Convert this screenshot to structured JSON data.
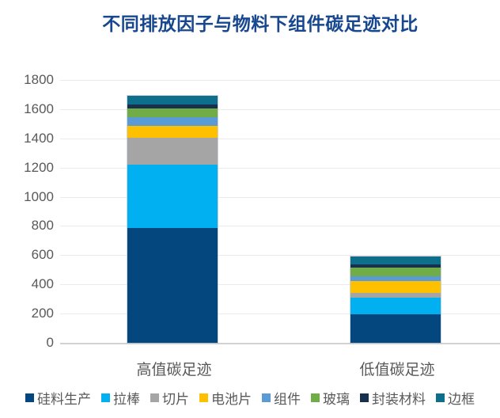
{
  "chart_data": {
    "type": "bar",
    "stacked": true,
    "title": "不同排放因子与物料下组件碳足迹对比",
    "categories": [
      "高值碳足迹",
      "低值碳足迹"
    ],
    "series": [
      {
        "name": "硅料生产",
        "color": "#04477E",
        "values": [
          785,
          195
        ]
      },
      {
        "name": "拉棒",
        "color": "#00B0F0",
        "values": [
          435,
          114
        ]
      },
      {
        "name": "切片",
        "color": "#A5A5A5",
        "values": [
          185,
          31
        ]
      },
      {
        "name": "电池片",
        "color": "#FFC000",
        "values": [
          80,
          81
        ]
      },
      {
        "name": "组件",
        "color": "#5B9BD5",
        "values": [
          60,
          33
        ]
      },
      {
        "name": "玻璃",
        "color": "#70AD47",
        "values": [
          60,
          60
        ]
      },
      {
        "name": "封装材料",
        "color": "#16304E",
        "values": [
          28,
          21
        ]
      },
      {
        "name": "边框",
        "color": "#0D6F8C",
        "values": [
          57,
          58
        ]
      }
    ],
    "category_totals": [
      1690,
      593
    ],
    "ylim": [
      0,
      1800
    ],
    "ytick_interval": 200,
    "yticks": [
      0,
      200,
      400,
      600,
      800,
      1000,
      1200,
      1400,
      1600,
      1800
    ],
    "grid": true,
    "legend_position": "bottom"
  },
  "colors": {
    "title_text": "#17478E",
    "axis_text": "#595959",
    "gridline": "#EBEBEB",
    "axis_line": "#D2D2D2",
    "background": "#FFFFFF"
  }
}
